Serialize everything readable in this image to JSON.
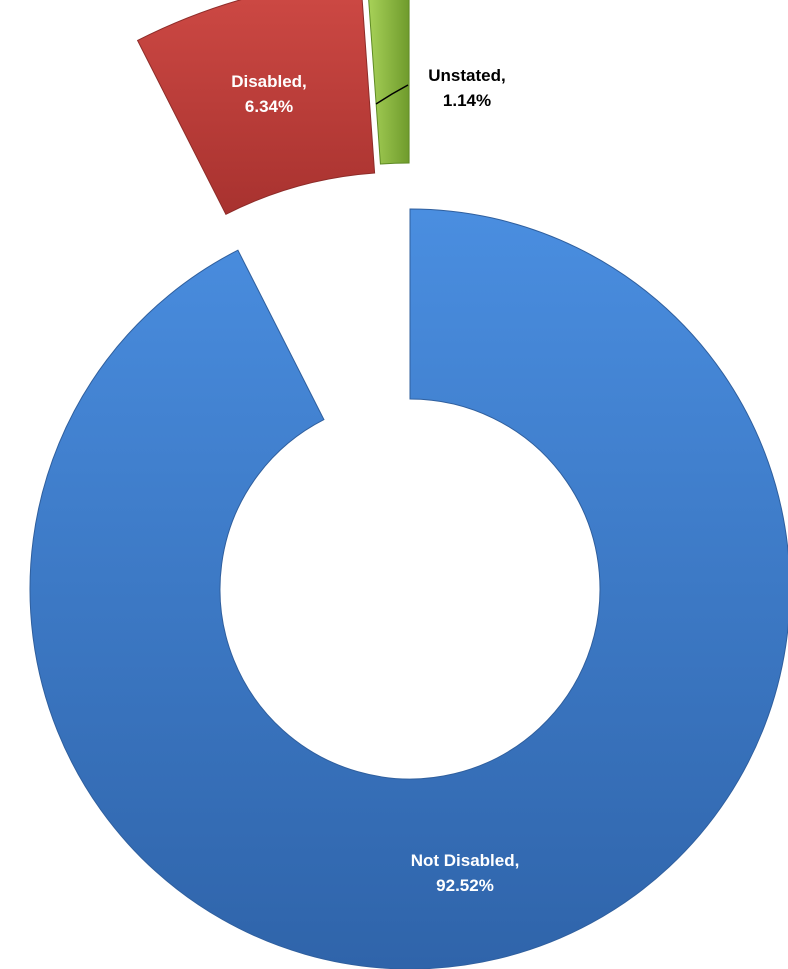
{
  "chart_data": {
    "type": "pie",
    "variant": "exploded-doughnut",
    "series": [
      {
        "values": [
          92.52,
          6.34,
          1.14
        ],
        "categories": [
          "Not Disabled",
          "Disabled",
          "Unstated"
        ]
      }
    ],
    "slices": [
      {
        "category": "Not Disabled",
        "value": 92.52,
        "label_line1": "Not Disabled,",
        "label_line2": "92.52%",
        "color": "#3a78c9",
        "label_color": "#ffffff"
      },
      {
        "category": "Disabled",
        "value": 6.34,
        "label_line1": "Disabled,",
        "label_line2": "6.34%",
        "color": "#c0403d",
        "label_color": "#ffffff"
      },
      {
        "category": "Unstated",
        "value": 1.14,
        "label_line1": "Unstated,",
        "label_line2": "1.14%",
        "color": "#8fba45",
        "label_color": "#000000"
      }
    ],
    "title": "",
    "legend": "none",
    "grid": false
  }
}
